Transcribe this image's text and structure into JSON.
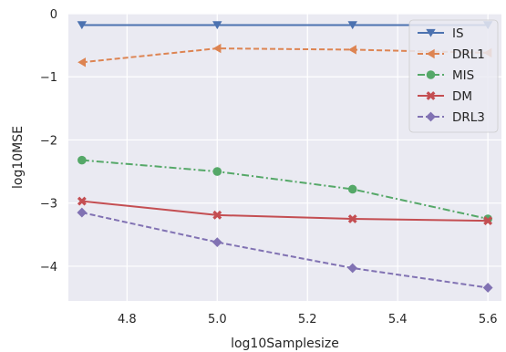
{
  "chart_data": {
    "type": "line",
    "title": "",
    "xlabel": "log10Samplesize",
    "ylabel": "log10MSE",
    "x": [
      4.7,
      5.0,
      5.3,
      5.6
    ],
    "xlim": [
      4.67,
      5.63
    ],
    "ylim": [
      -4.55,
      0.0
    ],
    "xticks": [
      "4.8",
      "5.0",
      "5.2",
      "5.4",
      "5.6"
    ],
    "yticks": [
      "0",
      "−1",
      "−2",
      "−3",
      "−4"
    ],
    "grid": true,
    "legend_position": "top-right",
    "series": [
      {
        "name": "IS",
        "values": [
          -0.18,
          -0.18,
          -0.18,
          -0.18
        ],
        "color": "#4c72b0",
        "marker": "triangle-down",
        "linestyle": "solid"
      },
      {
        "name": "DRL1",
        "values": [
          -0.77,
          -0.55,
          -0.57,
          -0.62
        ],
        "color": "#dd8452",
        "marker": "triangle-left",
        "linestyle": "dashed"
      },
      {
        "name": "MIS",
        "values": [
          -2.32,
          -2.5,
          -2.78,
          -3.25
        ],
        "color": "#55a868",
        "marker": "circle",
        "linestyle": "dashdot"
      },
      {
        "name": "DM",
        "values": [
          -2.97,
          -3.19,
          -3.25,
          -3.28
        ],
        "color": "#c44e52",
        "marker": "x",
        "linestyle": "solid"
      },
      {
        "name": "DRL3",
        "values": [
          -3.15,
          -3.62,
          -4.03,
          -4.34
        ],
        "color": "#8172b3",
        "marker": "diamond",
        "linestyle": "dashed"
      }
    ]
  }
}
